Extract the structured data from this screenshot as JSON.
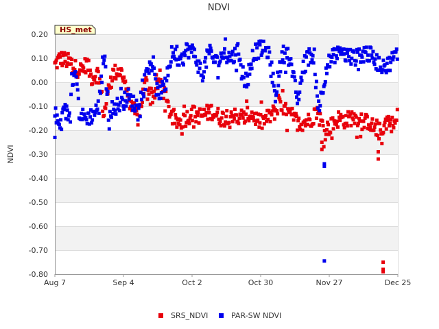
{
  "chart_data": {
    "type": "scatter",
    "title": "NDVI",
    "xlabel": "",
    "ylabel": "NDVI",
    "site_badge": "HS_met",
    "ylim": [
      -0.8,
      0.2
    ],
    "y_ticks": [
      "0.20",
      "0.10",
      "0.00",
      "-0.10",
      "-0.20",
      "-0.30",
      "-0.40",
      "-0.50",
      "-0.60",
      "-0.70",
      "-0.80"
    ],
    "x_range_days": [
      0,
      140
    ],
    "x_ticks": [
      {
        "label": "Aug 7",
        "day": 0
      },
      {
        "label": "Sep 4",
        "day": 28
      },
      {
        "label": "Oct 2",
        "day": 56
      },
      {
        "label": "Oct 30",
        "day": 84
      },
      {
        "label": "Nov 27",
        "day": 112
      },
      {
        "label": "Dec 25",
        "day": 140
      }
    ],
    "legend_position": "bottom-center",
    "series": [
      {
        "name": "SRS_NDVI",
        "color": "#e8000b",
        "profile": [
          [
            0,
            0.07
          ],
          [
            2,
            0.1
          ],
          [
            5,
            0.09
          ],
          [
            8,
            0.06
          ],
          [
            11,
            0.05
          ],
          [
            13,
            0.08
          ],
          [
            15,
            0.02
          ],
          [
            18,
            0.04
          ],
          [
            20,
            -0.14
          ],
          [
            23,
            0.03
          ],
          [
            26,
            0.05
          ],
          [
            28,
            0.03
          ],
          [
            31,
            -0.1
          ],
          [
            34,
            -0.15
          ],
          [
            37,
            0.0
          ],
          [
            40,
            -0.06
          ],
          [
            43,
            0.02
          ],
          [
            46,
            -0.1
          ],
          [
            49,
            -0.17
          ],
          [
            52,
            -0.16
          ],
          [
            56,
            -0.13
          ],
          [
            60,
            -0.14
          ],
          [
            64,
            -0.12
          ],
          [
            68,
            -0.15
          ],
          [
            72,
            -0.13
          ],
          [
            76,
            -0.16
          ],
          [
            80,
            -0.13
          ],
          [
            84,
            -0.17
          ],
          [
            88,
            -0.14
          ],
          [
            92,
            -0.1
          ],
          [
            96,
            -0.14
          ],
          [
            100,
            -0.17
          ],
          [
            104,
            -0.16
          ],
          [
            107,
            -0.12
          ],
          [
            110,
            -0.2
          ],
          [
            113,
            -0.18
          ],
          [
            116,
            -0.15
          ],
          [
            119,
            -0.16
          ],
          [
            122,
            -0.14
          ],
          [
            125,
            -0.18
          ],
          [
            128,
            -0.16
          ],
          [
            130,
            -0.19
          ],
          [
            133,
            -0.21
          ],
          [
            136,
            -0.15
          ],
          [
            138,
            -0.18
          ],
          [
            140,
            -0.16
          ]
        ],
        "outliers": [
          {
            "day": 109,
            "y": -0.25
          },
          {
            "day": 109,
            "y": -0.28
          },
          {
            "day": 132,
            "y": -0.29
          },
          {
            "day": 132,
            "y": -0.32
          },
          {
            "day": 134,
            "y": -0.75
          },
          {
            "day": 134,
            "y": -0.78
          },
          {
            "day": 134,
            "y": -0.79
          }
        ]
      },
      {
        "name": "PAR-SW NDVI",
        "color": "#0000ee",
        "profile": [
          [
            0,
            -0.13
          ],
          [
            2,
            -0.19
          ],
          [
            4,
            -0.12
          ],
          [
            6,
            -0.14
          ],
          [
            8,
            0.08
          ],
          [
            10,
            -0.13
          ],
          [
            12,
            -0.15
          ],
          [
            15,
            -0.14
          ],
          [
            18,
            -0.1
          ],
          [
            20,
            0.13
          ],
          [
            22,
            -0.12
          ],
          [
            25,
            -0.1
          ],
          [
            28,
            -0.08
          ],
          [
            30,
            -0.06
          ],
          [
            33,
            -0.1
          ],
          [
            36,
            -0.04
          ],
          [
            39,
            0.1
          ],
          [
            42,
            -0.05
          ],
          [
            45,
            -0.02
          ],
          [
            48,
            0.13
          ],
          [
            51,
            0.07
          ],
          [
            54,
            0.14
          ],
          [
            57,
            0.12
          ],
          [
            60,
            0.03
          ],
          [
            63,
            0.13
          ],
          [
            66,
            0.08
          ],
          [
            69,
            0.12
          ],
          [
            72,
            0.1
          ],
          [
            75,
            0.13
          ],
          [
            78,
            -0.02
          ],
          [
            81,
            0.12
          ],
          [
            84,
            0.14
          ],
          [
            87,
            0.13
          ],
          [
            90,
            -0.05
          ],
          [
            93,
            0.12
          ],
          [
            96,
            0.1
          ],
          [
            99,
            -0.08
          ],
          [
            102,
            0.09
          ],
          [
            105,
            0.12
          ],
          [
            108,
            -0.1
          ],
          [
            111,
            0.07
          ],
          [
            114,
            0.11
          ],
          [
            117,
            0.12
          ],
          [
            120,
            0.11
          ],
          [
            123,
            0.1
          ],
          [
            126,
            0.13
          ],
          [
            129,
            0.11
          ],
          [
            132,
            0.08
          ],
          [
            135,
            0.06
          ],
          [
            138,
            0.1
          ],
          [
            140,
            0.12
          ]
        ],
        "outliers": [
          {
            "day": 110,
            "y": -0.34
          },
          {
            "day": 110,
            "y": -0.35
          },
          {
            "day": 110,
            "y": -0.745
          },
          {
            "day": 0,
            "y": -0.23
          }
        ]
      }
    ]
  }
}
